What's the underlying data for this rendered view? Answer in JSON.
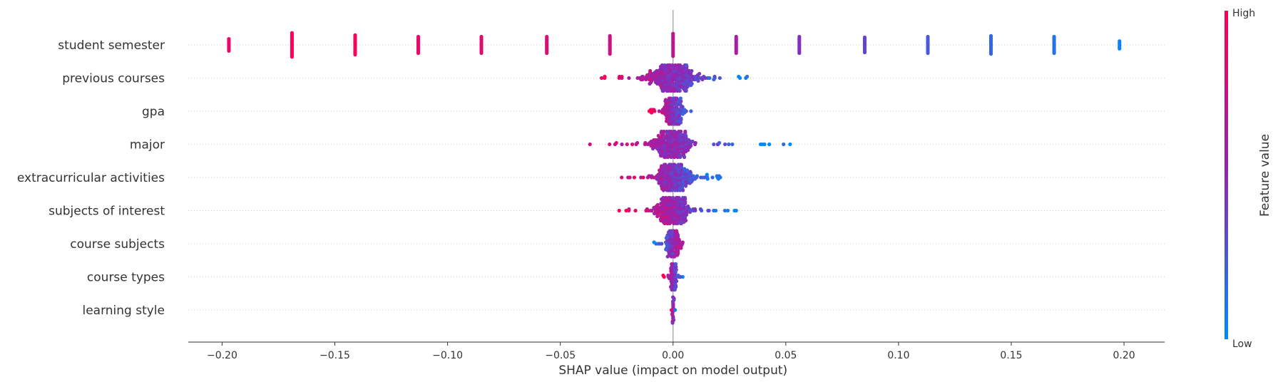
{
  "chart_data": {
    "type": "scatter",
    "subtype": "shap-beeswarm",
    "xlabel": "SHAP value (impact on model output)",
    "xlim": [
      -0.215,
      0.218
    ],
    "xticks": [
      -0.2,
      -0.15,
      -0.1,
      -0.05,
      0.0,
      0.05,
      0.1,
      0.15,
      0.2
    ],
    "xtick_labels": [
      "−0.20",
      "−0.15",
      "−0.10",
      "−0.05",
      "0.00",
      "0.05",
      "0.10",
      "0.15",
      "0.20"
    ],
    "colorbar": {
      "label": "Feature value",
      "high_label": "High",
      "low_label": "Low",
      "high_color": "#ff0052",
      "mid_color": "#8f27b5",
      "low_color": "#008bfb"
    },
    "features": [
      {
        "name": "student semester",
        "kind": "discrete",
        "x_range": [
          -0.197,
          0.198
        ],
        "values": [
          -0.197,
          -0.169,
          -0.141,
          -0.113,
          -0.085,
          -0.056,
          -0.028,
          0.0,
          0.028,
          0.056,
          0.085,
          0.113,
          0.141,
          0.169,
          0.198
        ],
        "feature_values": [
          0.9,
          1.0,
          0.95,
          0.9,
          0.86,
          0.82,
          0.77,
          0.7,
          0.6,
          0.45,
          0.35,
          0.25,
          0.18,
          0.12,
          0.05
        ],
        "counts": [
          9,
          17,
          14,
          12,
          12,
          12,
          13,
          16,
          12,
          12,
          11,
          12,
          13,
          12,
          6
        ]
      },
      {
        "name": "previous courses",
        "kind": "swarm",
        "x_range": [
          -0.035,
          0.033
        ],
        "peak": 0.0,
        "spread": 0.014,
        "color_direction": "high-left"
      },
      {
        "name": "gpa",
        "kind": "swarm",
        "x_range": [
          -0.012,
          0.011
        ],
        "peak": 0.0,
        "spread": 0.005,
        "color_direction": "high-left"
      },
      {
        "name": "major",
        "kind": "swarm",
        "x_range": [
          -0.05,
          0.052
        ],
        "peak": 0.0,
        "spread": 0.01,
        "color_direction": "high-left"
      },
      {
        "name": "extracurricular activities",
        "kind": "swarm",
        "x_range": [
          -0.026,
          0.021
        ],
        "peak": 0.0,
        "spread": 0.009,
        "color_direction": "high-left"
      },
      {
        "name": "subjects of interest",
        "kind": "swarm",
        "x_range": [
          -0.024,
          0.029
        ],
        "peak": 0.0,
        "spread": 0.008,
        "color_direction": "high-left"
      },
      {
        "name": "course subjects",
        "kind": "swarm",
        "x_range": [
          -0.009,
          0.009
        ],
        "peak": 0.0,
        "spread": 0.004,
        "color_direction": "low-left"
      },
      {
        "name": "course types",
        "kind": "swarm",
        "x_range": [
          -0.005,
          0.005
        ],
        "peak": 0.0,
        "spread": 0.002,
        "color_direction": "high-left"
      },
      {
        "name": "learning style",
        "kind": "swarm",
        "x_range": [
          -0.001,
          0.001
        ],
        "peak": 0.0,
        "spread": 0.0005,
        "color_direction": "high-left"
      }
    ]
  }
}
